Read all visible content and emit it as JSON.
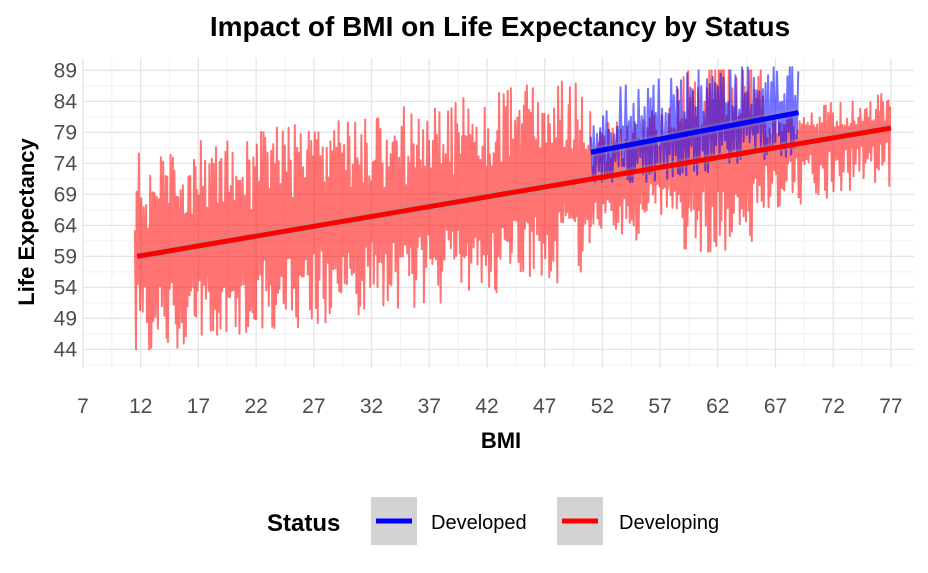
{
  "chart_data": {
    "type": "line",
    "title": "Impact of BMI on Life Expectancy by Status",
    "xlabel": "BMI",
    "ylabel": "Life Expectancy",
    "xlim": [
      7,
      79
    ],
    "ylim": [
      41,
      91
    ],
    "x_ticks": [
      7,
      12,
      17,
      22,
      27,
      32,
      37,
      42,
      47,
      52,
      57,
      62,
      67,
      72,
      77
    ],
    "y_ticks": [
      44,
      49,
      54,
      59,
      64,
      69,
      74,
      79,
      84,
      89
    ],
    "grid": true,
    "legend": {
      "title": "Status",
      "position": "bottom",
      "entries": [
        {
          "label": "Developed",
          "color": "#0000ff"
        },
        {
          "label": "Developing",
          "color": "#ff0000"
        }
      ]
    },
    "series": [
      {
        "name": "Developed",
        "color": "#0000ff",
        "raw_line_alpha": 0.55,
        "x_range": [
          51,
          69
        ],
        "y_range": [
          71,
          90
        ],
        "trend": {
          "x": [
            51,
            69
          ],
          "y": [
            75.8,
            82.2
          ]
        }
      },
      {
        "name": "Developing",
        "color": "#ff0000",
        "raw_line_alpha": 0.55,
        "x_range": [
          11.5,
          77
        ],
        "y_range": [
          44,
          89
        ],
        "trend": {
          "x": [
            11.7,
            77
          ],
          "y": [
            59,
            79.7
          ]
        }
      }
    ]
  }
}
